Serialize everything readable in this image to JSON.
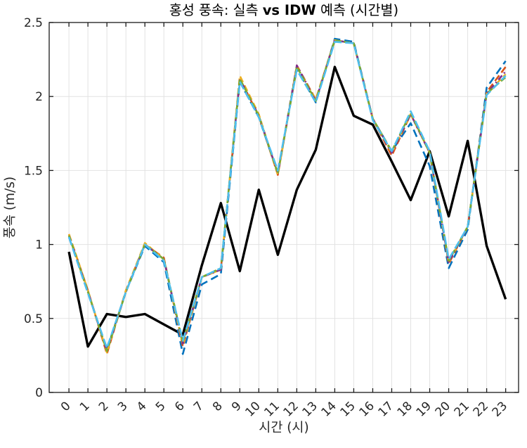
{
  "figure": {
    "title_prefix": "홍성 풍속: 실측 ",
    "title_bold": "vs IDW",
    "title_suffix": " 예측 (시간별)",
    "xlabel": "시간 (시)",
    "ylabel": "풍속 (m/s)"
  },
  "chart_data": {
    "type": "line",
    "title": "홍성 풍속: 실측 vs IDW 예측 (시간별)",
    "xlabel": "시간 (시)",
    "ylabel": "풍속 (m/s)",
    "grid": true,
    "legend": "none",
    "box": true,
    "x": [
      0,
      1,
      2,
      3,
      4,
      5,
      6,
      7,
      8,
      9,
      10,
      11,
      12,
      13,
      14,
      15,
      16,
      17,
      18,
      19,
      20,
      21,
      22,
      23
    ],
    "x_tick_labels": [
      "0",
      "1",
      "2",
      "3",
      "4",
      "5",
      "6",
      "7",
      "8",
      "9",
      "10",
      "11",
      "12",
      "13",
      "14",
      "15",
      "16",
      "17",
      "18",
      "19",
      "20",
      "21",
      "22",
      "23"
    ],
    "x_tick_rotation": 45,
    "xlim": [
      -1.04,
      23.68
    ],
    "ylim": [
      0,
      2.5
    ],
    "yticks": [
      0,
      0.5,
      1,
      1.5,
      2,
      2.5
    ],
    "ytick_labels": [
      "0",
      "0.5",
      "1",
      "1.5",
      "2",
      "2.5"
    ],
    "axis_color": "#1a1a1a",
    "grid_color": "#e2e2e2",
    "tick_label_color": "#262626",
    "series": [
      {
        "name": "observed-solid-black",
        "color": "#000000",
        "style": "solid",
        "dash": [],
        "width": 3.4,
        "values": [
          0.95,
          0.31,
          0.53,
          0.51,
          0.53,
          0.46,
          0.39,
          0.86,
          1.28,
          0.82,
          1.37,
          0.93,
          1.37,
          1.64,
          2.2,
          1.87,
          1.81,
          1.56,
          1.3,
          1.63,
          1.19,
          1.7,
          0.99,
          0.63
        ]
      },
      {
        "name": "idw-dashed-blue",
        "color": "#0072BD",
        "style": "dashed",
        "dash": [
          11,
          6
        ],
        "width": 2.6,
        "values": [
          1.05,
          0.68,
          0.29,
          0.68,
          0.99,
          0.88,
          0.26,
          0.73,
          0.8,
          2.1,
          1.86,
          1.48,
          2.19,
          1.96,
          2.39,
          2.37,
          1.85,
          1.63,
          1.82,
          1.53,
          0.84,
          1.1,
          2.06,
          2.24
        ]
      },
      {
        "name": "idw-dashed-orange",
        "color": "#D95319",
        "style": "dashed",
        "dash": [
          10,
          5
        ],
        "width": 2.6,
        "values": [
          1.07,
          0.69,
          0.26,
          0.69,
          1.0,
          0.91,
          0.31,
          0.78,
          0.83,
          2.12,
          1.87,
          1.47,
          2.21,
          1.98,
          2.38,
          2.36,
          1.85,
          1.6,
          1.88,
          1.62,
          0.87,
          1.12,
          2.03,
          2.2
        ]
      },
      {
        "name": "idw-dashed-yellow",
        "color": "#EDB120",
        "style": "dashed",
        "dash": [
          9,
          5
        ],
        "width": 2.6,
        "values": [
          1.07,
          0.69,
          0.27,
          0.69,
          1.01,
          0.9,
          0.32,
          0.78,
          0.83,
          2.14,
          1.88,
          1.47,
          2.2,
          1.98,
          2.38,
          2.36,
          1.85,
          1.62,
          1.88,
          1.62,
          0.88,
          1.12,
          2.02,
          2.15
        ]
      },
      {
        "name": "idw-dashdot-purple",
        "color": "#7E2F8E",
        "style": "dashdot",
        "dash": [
          8,
          4,
          2,
          4
        ],
        "width": 2.6,
        "values": [
          1.06,
          0.68,
          0.28,
          0.68,
          1.0,
          0.9,
          0.33,
          0.78,
          0.83,
          2.12,
          1.87,
          1.48,
          2.21,
          1.97,
          2.38,
          2.36,
          1.85,
          1.62,
          1.88,
          1.62,
          0.88,
          1.12,
          2.02,
          2.17
        ]
      },
      {
        "name": "idw-dashed-green",
        "color": "#77AC30",
        "style": "dashed",
        "dash": [
          8,
          4
        ],
        "width": 2.6,
        "values": [
          1.06,
          0.68,
          0.28,
          0.68,
          1.0,
          0.9,
          0.34,
          0.78,
          0.84,
          2.12,
          1.87,
          1.48,
          2.2,
          1.97,
          2.38,
          2.36,
          1.85,
          1.63,
          1.89,
          1.62,
          0.89,
          1.12,
          2.02,
          2.13
        ]
      },
      {
        "name": "idw-dashed-cyan",
        "color": "#4DBEEE",
        "style": "dashed",
        "dash": [
          12,
          5
        ],
        "width": 2.6,
        "values": [
          1.05,
          0.67,
          0.3,
          0.68,
          1.0,
          0.89,
          0.35,
          0.78,
          0.84,
          2.1,
          1.86,
          1.5,
          2.18,
          1.96,
          2.37,
          2.36,
          1.84,
          1.63,
          1.9,
          1.63,
          0.9,
          1.12,
          2.01,
          2.14
        ]
      }
    ]
  }
}
